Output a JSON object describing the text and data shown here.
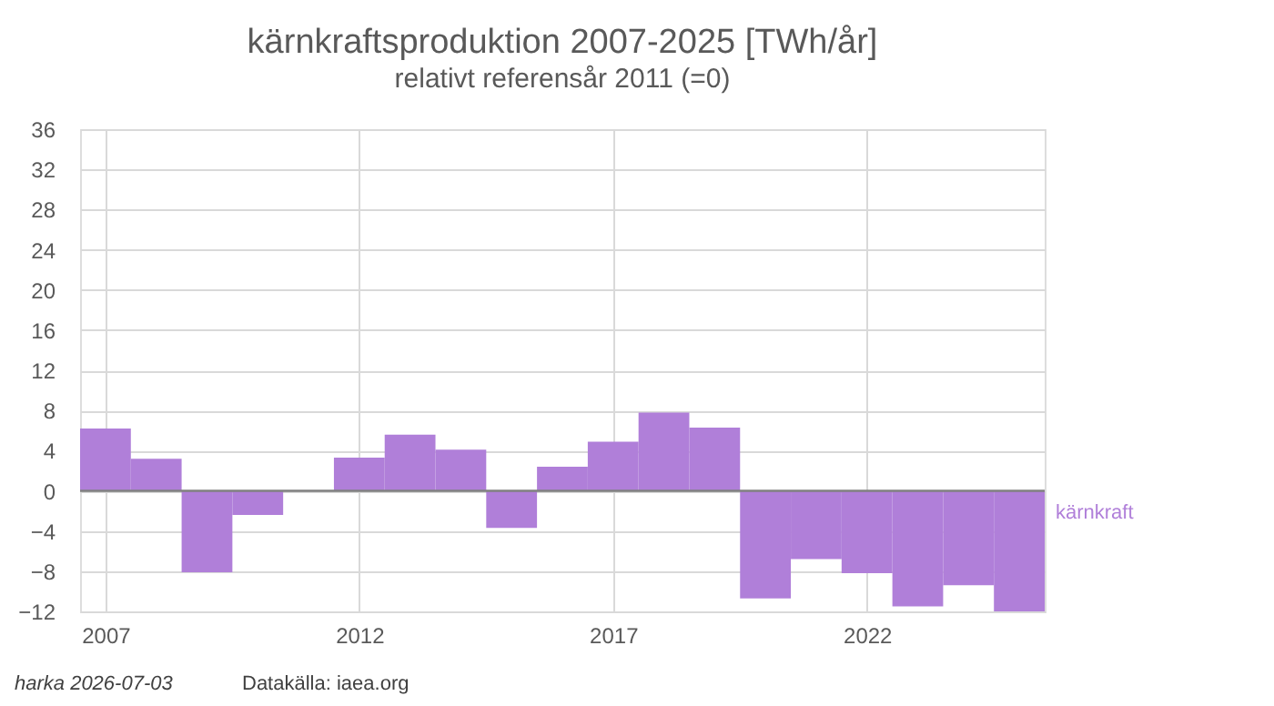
{
  "chart_data": {
    "type": "bar",
    "title": "kärnkraftsproduktion 2007-2025 [TWh/år]",
    "subtitle": "relativt referensår 2011 (=0)",
    "x": [
      2007,
      2008,
      2009,
      2010,
      2011,
      2012,
      2013,
      2014,
      2015,
      2016,
      2017,
      2018,
      2019,
      2020,
      2021,
      2022,
      2023,
      2024,
      2025
    ],
    "series": [
      {
        "name": "kärnkraft",
        "color": "#b07fd9",
        "values": [
          6.2,
          3.2,
          -8.1,
          -2.4,
          0,
          3.3,
          5.6,
          4.1,
          -3.7,
          2.4,
          4.9,
          7.8,
          6.3,
          -10.7,
          -6.8,
          -8.2,
          -11.5,
          -9.4,
          -12
        ]
      }
    ],
    "xlim": [
      2006.5,
      2025.5
    ],
    "xticks": [
      2007,
      2012,
      2017,
      2022
    ],
    "ylim": [
      -12,
      36
    ],
    "yticks": [
      -12,
      -8,
      -4,
      0,
      4,
      8,
      12,
      16,
      20,
      24,
      28,
      32,
      36
    ],
    "grid": true,
    "legend": false,
    "ref_lines": [
      {
        "axis": "y",
        "value": 0,
        "color": "#808080"
      }
    ],
    "annotations": [
      "harka 2026-07-03",
      "Datakälla: iaea.org"
    ]
  }
}
